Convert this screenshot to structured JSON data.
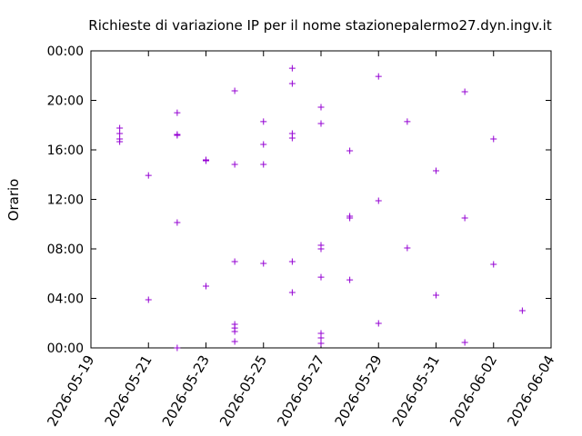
{
  "chart_data": {
    "type": "scatter",
    "title": "Richieste di variazione IP per il nome stazionepalermo27.dyn.ingv.it",
    "y_label": "Orario",
    "series": [
      {
        "color": "#9400d3",
        "x": [
          "2026-05-20",
          "2026-05-20",
          "2026-05-20",
          "2026-05-20",
          "2026-05-21",
          "2026-05-21",
          "2026-05-22",
          "2026-05-22",
          "2026-05-22",
          "2026-05-22",
          "2026-05-22",
          "2026-05-23",
          "2026-05-23",
          "2026-05-23",
          "2026-05-24",
          "2026-05-24",
          "2026-05-24",
          "2026-05-24",
          "2026-05-24",
          "2026-05-24",
          "2026-05-24",
          "2026-05-25",
          "2026-05-25",
          "2026-05-25",
          "2026-05-25",
          "2026-05-26",
          "2026-05-26",
          "2026-05-26",
          "2026-05-26",
          "2026-05-26",
          "2026-05-26",
          "2026-05-27",
          "2026-05-27",
          "2026-05-27",
          "2026-05-27",
          "2026-05-27",
          "2026-05-27",
          "2026-05-27",
          "2026-05-27",
          "2026-05-28",
          "2026-05-28",
          "2026-05-28",
          "2026-05-28",
          "2026-05-29",
          "2026-05-29",
          "2026-05-29",
          "2026-05-30",
          "2026-05-30",
          "2026-05-31",
          "2026-05-31",
          "2026-06-01",
          "2026-06-01",
          "2026-06-01",
          "2026-06-02",
          "2026-06-02",
          "2026-06-03"
        ],
        "values": [
          17.76,
          17.32,
          16.88,
          16.66,
          13.94,
          3.89,
          19.0,
          17.25,
          17.17,
          10.13,
          0.0,
          15.19,
          15.12,
          4.99,
          20.77,
          14.83,
          6.97,
          1.91,
          1.61,
          1.32,
          0.51,
          18.28,
          16.44,
          14.83,
          6.83,
          22.6,
          21.36,
          17.32,
          16.95,
          6.97,
          4.48,
          19.45,
          18.13,
          8.29,
          8.0,
          5.72,
          1.17,
          0.81,
          0.37,
          15.93,
          10.64,
          10.5,
          5.5,
          21.94,
          11.89,
          1.98,
          18.28,
          8.07,
          14.31,
          4.26,
          20.7,
          10.5,
          0.44,
          16.88,
          6.75,
          3.01
        ]
      }
    ],
    "xlim": [
      "2026-05-19",
      "2026-06-04"
    ],
    "xticks": [
      "2026-05-19",
      "2026-05-21",
      "2026-05-23",
      "2026-05-25",
      "2026-05-27",
      "2026-05-29",
      "2026-05-31",
      "2026-06-02",
      "2026-06-04"
    ],
    "ylim": [
      0,
      24
    ],
    "yticks": [
      {
        "value": 0,
        "label": "00:00"
      },
      {
        "value": 4,
        "label": "04:00"
      },
      {
        "value": 8,
        "label": "08:00"
      },
      {
        "value": 12,
        "label": "12:00"
      },
      {
        "value": 16,
        "label": "16:00"
      },
      {
        "value": 20,
        "label": "20:00"
      },
      {
        "value": 24,
        "label": "00:00"
      }
    ],
    "grid": false
  }
}
